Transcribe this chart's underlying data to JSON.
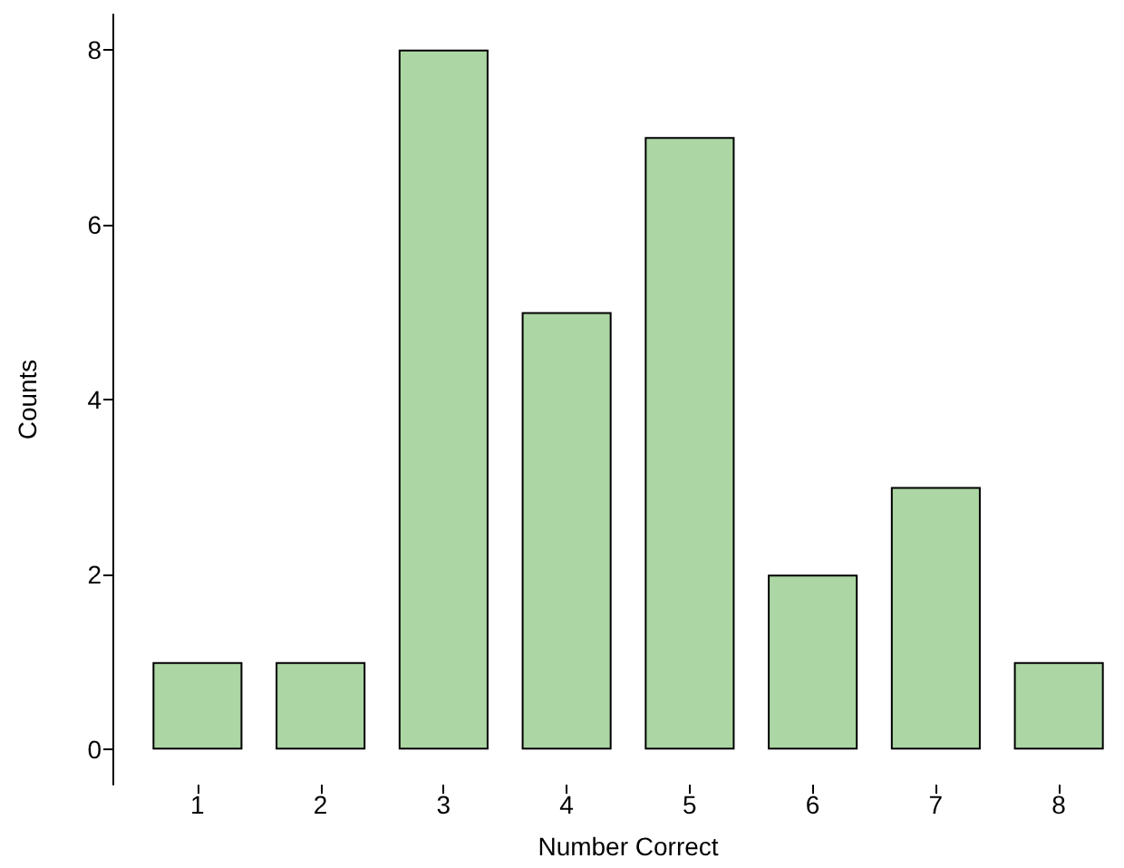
{
  "chart_data": {
    "type": "bar",
    "xlabel": "Number Correct",
    "ylabel": "Counts",
    "categories": [
      "1",
      "2",
      "3",
      "4",
      "5",
      "6",
      "7",
      "8"
    ],
    "values": [
      1,
      1,
      8,
      5,
      7,
      2,
      3,
      1
    ],
    "color": "#acd6a4",
    "ylim": [
      -0.4,
      8.4
    ],
    "yticks": [
      0,
      2,
      4,
      6,
      8
    ],
    "grid": false
  }
}
